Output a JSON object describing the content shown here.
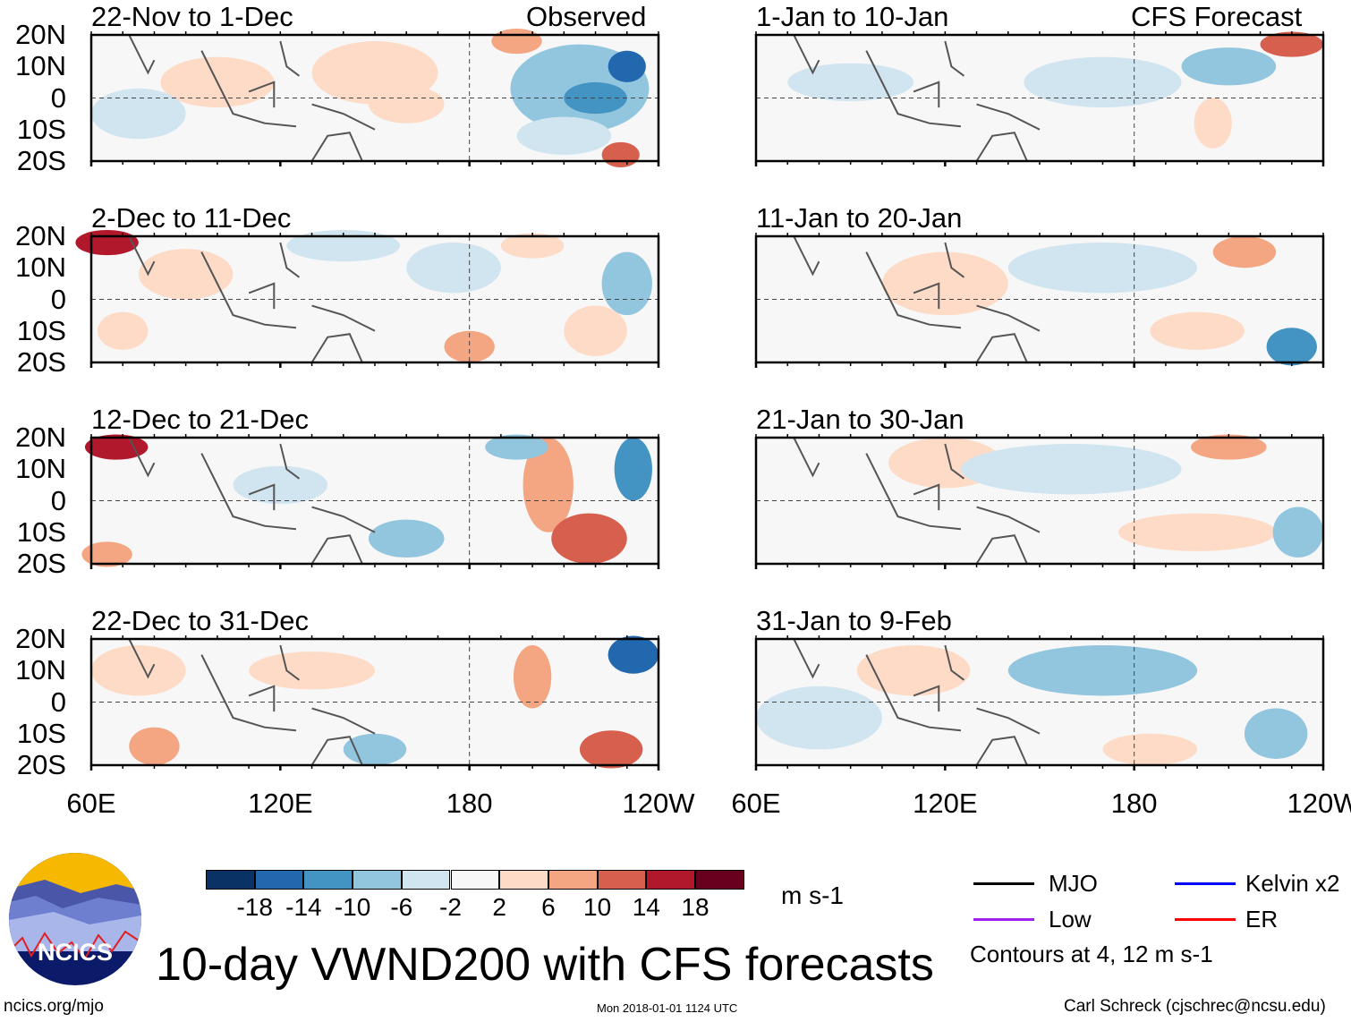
{
  "header": {
    "left_label": "Observed",
    "right_label": "CFS Forecast"
  },
  "panels_left": [
    {
      "title": "22-Nov to 1-Dec"
    },
    {
      "title": "2-Dec to 11-Dec"
    },
    {
      "title": "12-Dec to 21-Dec"
    },
    {
      "title": "22-Dec to 31-Dec"
    }
  ],
  "panels_right": [
    {
      "title": "1-Jan to 10-Jan"
    },
    {
      "title": "11-Jan to 20-Jan"
    },
    {
      "title": "21-Jan to 30-Jan"
    },
    {
      "title": "31-Jan to 9-Feb"
    }
  ],
  "lat_labels": [
    "20N",
    "10N",
    "0",
    "10S",
    "20S"
  ],
  "lon_labels": [
    "60E",
    "120E",
    "180",
    "120W"
  ],
  "colorbar": {
    "colors": [
      "#0b3264",
      "#2268ae",
      "#4393c3",
      "#92c5de",
      "#d1e5f0",
      "#f7f7f7",
      "#fddbc7",
      "#f4a582",
      "#d6604d",
      "#b2182b",
      "#67001f"
    ],
    "ticks": [
      "-18",
      "-14",
      "-10",
      "-6",
      "-2",
      "2",
      "6",
      "10",
      "14",
      "18"
    ],
    "units": "m s-1"
  },
  "legend": {
    "items": [
      {
        "label": "MJO",
        "color": "#000000"
      },
      {
        "label": "Kelvin x2",
        "color": "#0000ff"
      },
      {
        "label": "Low",
        "color": "#a020f0"
      },
      {
        "label": "ER",
        "color": "#ff0000"
      }
    ],
    "note": "Contours at 4, 12 m s-1"
  },
  "logo": {
    "text": "NCICS"
  },
  "title": "10-day VWND200 with CFS forecasts",
  "footer": {
    "url": "ncics.org/mjo",
    "timestamp": "Mon 2018-01-01 1124 UTC",
    "author": "Carl Schreck (cjschrec@ncsu.edu)"
  }
}
